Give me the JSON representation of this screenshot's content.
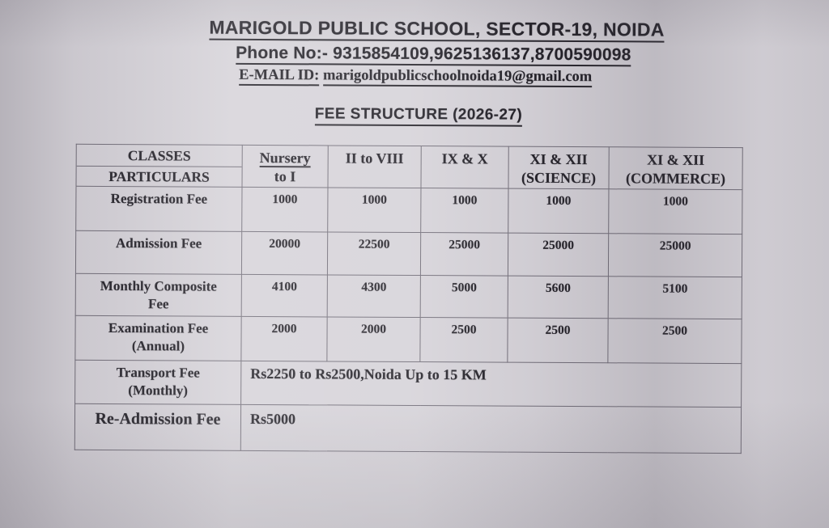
{
  "page": {
    "school_name": "MARIGOLD PUBLIC SCHOOL, SECTOR-19, NOIDA",
    "phone_label": "Phone No:-",
    "phone_numbers": "9315854109,9625136137,8700590098",
    "email_label": "E-MAIL ID:",
    "email_address": "marigoldpublicschoolnoida19@gmail.com",
    "document_title": "FEE STRUCTURE (2026-27)"
  },
  "table": {
    "corner_top": "CLASSES",
    "corner_bottom": "PARTICULARS",
    "columns": [
      {
        "line1": "Nursery",
        "line2": "to I"
      },
      {
        "line1": "II to VIII",
        "line2": ""
      },
      {
        "line1": "IX & X",
        "line2": ""
      },
      {
        "line1": "XI & XII",
        "line2": "(SCIENCE)"
      },
      {
        "line1": "XI & XII",
        "line2": "(COMMERCE)"
      }
    ],
    "rows": [
      {
        "label_line1": "Registration Fee",
        "label_line2": "",
        "values": [
          "1000",
          "1000",
          "1000",
          "1000",
          "1000"
        ]
      },
      {
        "label_line1": "Admission Fee",
        "label_line2": "",
        "values": [
          "20000",
          "22500",
          "25000",
          "25000",
          "25000"
        ]
      },
      {
        "label_line1": "Monthly Composite",
        "label_line2": "Fee",
        "values": [
          "4100",
          "4300",
          "5000",
          "5600",
          "5100"
        ]
      },
      {
        "label_line1": "Examination Fee",
        "label_line2": "(Annual)",
        "values": [
          "2000",
          "2000",
          "2500",
          "2500",
          "2500"
        ]
      },
      {
        "label_line1": "Transport Fee",
        "label_line2": "(Monthly)",
        "span_value": "Rs2250 to Rs2500,Noida Up to 15 KM"
      },
      {
        "label_line1": "Re-Admission Fee",
        "label_line2": "",
        "span_value": "Rs5000"
      }
    ]
  },
  "colors": {
    "paper": "#d5d2d8",
    "ink": "#211f26",
    "table_line": "#716d78"
  }
}
